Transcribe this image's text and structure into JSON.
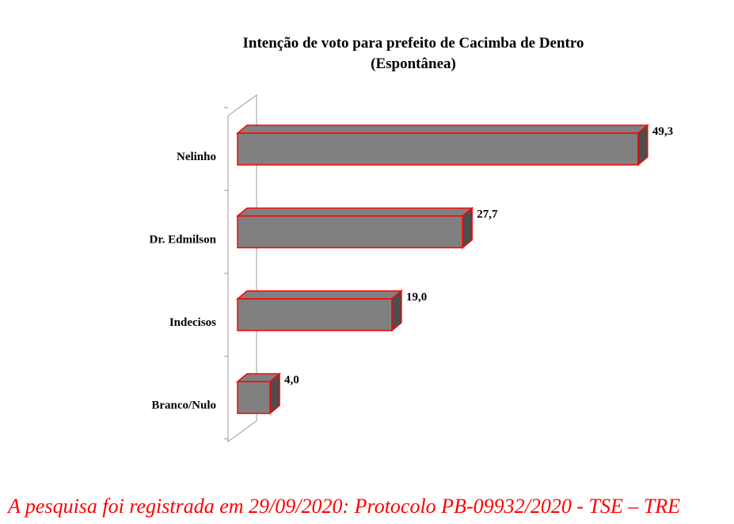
{
  "chart_data": {
    "type": "bar",
    "orientation": "horizontal",
    "title": "Intenção de voto para prefeito de Cacimba de Dentro",
    "subtitle": "(Espontânea)",
    "categories": [
      "Nelinho",
      "Dr. Edmilson",
      "Indecisos",
      "Branco/Nulo"
    ],
    "values": [
      49.3,
      27.7,
      19.0,
      4.0
    ],
    "value_labels": [
      "49,3",
      "27,7",
      "19,0",
      "4,0"
    ],
    "xlim": [
      0,
      50
    ],
    "grid": false,
    "legend": "none",
    "style": "3d",
    "colors": {
      "bar_fill": "#808080",
      "bar_edge": "#ff0000",
      "bar_depth": "#4d4d4d",
      "wall": "#999999"
    }
  },
  "footer": {
    "text": "A pesquisa foi registrada em 29/09/2020: Protocolo PB-09932/2020 - TSE – TRE",
    "color": "#ff0000"
  }
}
